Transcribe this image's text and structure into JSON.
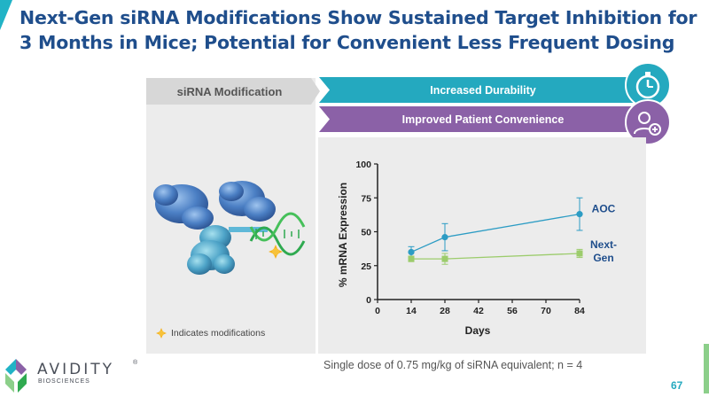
{
  "title": {
    "line1": "Next-Gen siRNA Modifications Show Sustained Target Inhibition for",
    "line2": "3 Months in Mice; Potential for Convenient Less Frequent Dosing"
  },
  "left_panel": {
    "header": "siRNA Modification",
    "legend_text": "Indicates modifications"
  },
  "banners": {
    "durability": "Increased Durability",
    "convenience": "Improved Patient Convenience"
  },
  "icons": {
    "durability": "stopwatch-icon",
    "convenience": "patient-icon",
    "modification": "star-icon"
  },
  "chart_data": {
    "type": "line",
    "xlabel": "Days",
    "ylabel": "% mRNA Expression",
    "x_ticks": [
      0,
      14,
      28,
      42,
      56,
      70,
      84
    ],
    "y_ticks": [
      0,
      25,
      50,
      75,
      100
    ],
    "xlim": [
      0,
      84
    ],
    "ylim": [
      0,
      100
    ],
    "series": [
      {
        "name": "AOC",
        "label_line1": "AOC",
        "label_line2": "",
        "color": "#2c9cc4",
        "marker": "circle",
        "x": [
          14,
          28,
          84
        ],
        "values": [
          35,
          46,
          63
        ],
        "err": [
          4,
          10,
          12
        ]
      },
      {
        "name": "Next-Gen",
        "label_line1": "Next-",
        "label_line2": "Gen",
        "color": "#9ccc6c",
        "marker": "square",
        "x": [
          14,
          28,
          84
        ],
        "values": [
          30,
          30,
          34
        ],
        "err": [
          2,
          4,
          3
        ]
      }
    ]
  },
  "footnote": "Single dose of 0.75 mg/kg of siRNA equivalent; n = 4",
  "page_number": "67",
  "logo": {
    "name": "AVIDITY",
    "sub": "BIOSCIENCES",
    "tm": "®"
  },
  "colors": {
    "title": "#1f4e8c",
    "teal": "#24a9bf",
    "purple": "#8b61a7",
    "panel": "#ececec"
  }
}
